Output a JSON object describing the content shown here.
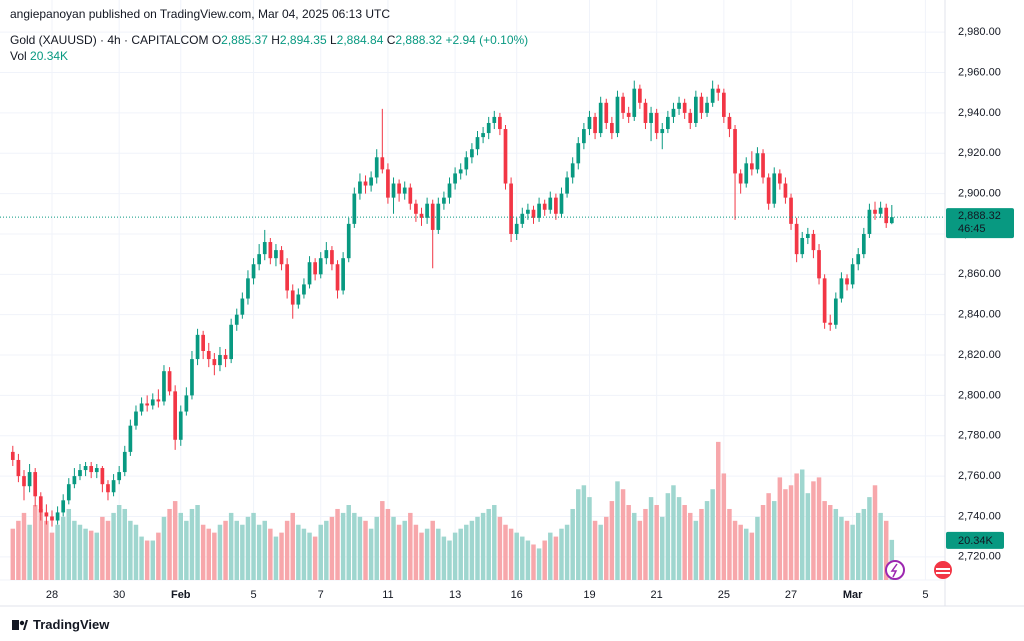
{
  "header": {
    "publisher": "angiepanoyan published on TradingView.com, Mar 04, 2025 06:13 UTC"
  },
  "chart_data": {
    "type": "candlestick",
    "title": "Gold (XAUUSD) · 4h · CAPITALCOM",
    "legend": {
      "o_label": "O",
      "o": "2,885.37",
      "h_label": "H",
      "h": "2,894.35",
      "l_label": "L",
      "l": "2,884.84",
      "c_label": "C",
      "c": "2,888.32",
      "change": "+2.94 (+0.10%)",
      "vol_label": "Vol",
      "vol": "20.34K"
    },
    "countdown": "46:45",
    "up_color": "#089981",
    "down_color": "#f23645",
    "volume_up_color": "#9fd6cf",
    "volume_down_color": "#f7a7ab",
    "grid": true,
    "ylim": [
      2710,
      2990
    ],
    "yticks": [
      {
        "value": 2720,
        "label": "2,720.00"
      },
      {
        "value": 2740,
        "label": "2,740.00"
      },
      {
        "value": 2760,
        "label": "2,760.00"
      },
      {
        "value": 2780,
        "label": "2,780.00"
      },
      {
        "value": 2800,
        "label": "2,800.00"
      },
      {
        "value": 2820,
        "label": "2,820.00"
      },
      {
        "value": 2840,
        "label": "2,840.00"
      },
      {
        "value": 2860,
        "label": "2,860.00"
      },
      {
        "value": 2880,
        "label": "2,880.00"
      },
      {
        "value": 2900,
        "label": "2,900.00"
      },
      {
        "value": 2920,
        "label": "2,920.00"
      },
      {
        "value": 2940,
        "label": "2,940.00"
      },
      {
        "value": 2960,
        "label": "2,960.00"
      },
      {
        "value": 2980,
        "label": "2,980.00"
      }
    ],
    "xlim": [
      0,
      167
    ],
    "xticks": [
      {
        "value": 7,
        "label": "28"
      },
      {
        "value": 19,
        "label": "30"
      },
      {
        "value": 30,
        "label": "Feb"
      },
      {
        "value": 43,
        "label": "5"
      },
      {
        "value": 55,
        "label": "7"
      },
      {
        "value": 67,
        "label": "11"
      },
      {
        "value": 79,
        "label": "13"
      },
      {
        "value": 90,
        "label": "16"
      },
      {
        "value": 103,
        "label": "19"
      },
      {
        "value": 115,
        "label": "21"
      },
      {
        "value": 127,
        "label": "25"
      },
      {
        "value": 139,
        "label": "27"
      },
      {
        "value": 150,
        "label": "Mar"
      },
      {
        "value": 163,
        "label": "5"
      }
    ],
    "vlim": [
      0,
      75000
    ],
    "candles": [
      [
        2772,
        2775,
        2765,
        2768
      ],
      [
        2768,
        2771,
        2757,
        2760
      ],
      [
        2760,
        2763,
        2748,
        2755
      ],
      [
        2755,
        2766,
        2752,
        2762
      ],
      [
        2762,
        2764,
        2745,
        2750
      ],
      [
        2750,
        2752,
        2738,
        2742
      ],
      [
        2742,
        2746,
        2736,
        2740
      ],
      [
        2740,
        2743,
        2735,
        2738
      ],
      [
        2738,
        2745,
        2736,
        2742
      ],
      [
        2742,
        2751,
        2740,
        2748
      ],
      [
        2748,
        2759,
        2746,
        2756
      ],
      [
        2756,
        2764,
        2754,
        2760
      ],
      [
        2760,
        2766,
        2758,
        2763
      ],
      [
        2763,
        2767,
        2760,
        2765
      ],
      [
        2765,
        2767,
        2759,
        2762
      ],
      [
        2762,
        2766,
        2759,
        2764
      ],
      [
        2764,
        2765,
        2752,
        2756
      ],
      [
        2756,
        2758,
        2748,
        2752
      ],
      [
        2752,
        2761,
        2750,
        2758
      ],
      [
        2758,
        2765,
        2756,
        2762
      ],
      [
        2762,
        2775,
        2760,
        2772
      ],
      [
        2772,
        2788,
        2770,
        2785
      ],
      [
        2785,
        2795,
        2783,
        2792
      ],
      [
        2792,
        2799,
        2790,
        2796
      ],
      [
        2796,
        2800,
        2792,
        2795
      ],
      [
        2795,
        2801,
        2793,
        2798
      ],
      [
        2798,
        2803,
        2794,
        2797
      ],
      [
        2797,
        2815,
        2795,
        2812
      ],
      [
        2812,
        2814,
        2800,
        2802
      ],
      [
        2802,
        2805,
        2773,
        2778
      ],
      [
        2778,
        2795,
        2775,
        2792
      ],
      [
        2792,
        2804,
        2790,
        2800
      ],
      [
        2800,
        2822,
        2798,
        2818
      ],
      [
        2818,
        2833,
        2815,
        2830
      ],
      [
        2830,
        2832,
        2818,
        2822
      ],
      [
        2822,
        2826,
        2814,
        2818
      ],
      [
        2818,
        2821,
        2810,
        2815
      ],
      [
        2815,
        2824,
        2812,
        2820
      ],
      [
        2820,
        2823,
        2814,
        2818
      ],
      [
        2818,
        2838,
        2816,
        2835
      ],
      [
        2835,
        2843,
        2832,
        2840
      ],
      [
        2840,
        2851,
        2838,
        2848
      ],
      [
        2848,
        2862,
        2845,
        2858
      ],
      [
        2858,
        2868,
        2855,
        2865
      ],
      [
        2865,
        2875,
        2862,
        2870
      ],
      [
        2870,
        2882,
        2867,
        2876
      ],
      [
        2876,
        2878,
        2865,
        2868
      ],
      [
        2868,
        2875,
        2864,
        2872
      ],
      [
        2872,
        2874,
        2862,
        2865
      ],
      [
        2865,
        2868,
        2848,
        2852
      ],
      [
        2852,
        2855,
        2838,
        2845
      ],
      [
        2845,
        2853,
        2843,
        2850
      ],
      [
        2850,
        2858,
        2848,
        2855
      ],
      [
        2855,
        2869,
        2853,
        2866
      ],
      [
        2866,
        2868,
        2857,
        2860
      ],
      [
        2860,
        2871,
        2858,
        2868
      ],
      [
        2868,
        2876,
        2865,
        2872
      ],
      [
        2872,
        2874,
        2862,
        2865
      ],
      [
        2865,
        2867,
        2848,
        2852
      ],
      [
        2852,
        2871,
        2850,
        2868
      ],
      [
        2868,
        2888,
        2866,
        2885
      ],
      [
        2885,
        2903,
        2883,
        2900
      ],
      [
        2900,
        2910,
        2897,
        2906
      ],
      [
        2906,
        2909,
        2900,
        2904
      ],
      [
        2904,
        2911,
        2901,
        2908
      ],
      [
        2908,
        2922,
        2905,
        2918
      ],
      [
        2918,
        2942,
        2910,
        2912
      ],
      [
        2912,
        2915,
        2895,
        2898
      ],
      [
        2898,
        2908,
        2890,
        2905
      ],
      [
        2905,
        2907,
        2896,
        2900
      ],
      [
        2900,
        2906,
        2897,
        2903
      ],
      [
        2903,
        2905,
        2892,
        2895
      ],
      [
        2895,
        2897,
        2886,
        2890
      ],
      [
        2890,
        2893,
        2884,
        2888
      ],
      [
        2888,
        2898,
        2885,
        2895
      ],
      [
        2895,
        2897,
        2863,
        2882
      ],
      [
        2882,
        2898,
        2880,
        2895
      ],
      [
        2895,
        2901,
        2892,
        2898
      ],
      [
        2898,
        2908,
        2895,
        2905
      ],
      [
        2905,
        2913,
        2902,
        2910
      ],
      [
        2910,
        2915,
        2907,
        2912
      ],
      [
        2912,
        2921,
        2909,
        2918
      ],
      [
        2918,
        2925,
        2915,
        2922
      ],
      [
        2922,
        2931,
        2919,
        2928
      ],
      [
        2928,
        2933,
        2925,
        2930
      ],
      [
        2930,
        2938,
        2927,
        2935
      ],
      [
        2935,
        2941,
        2932,
        2938
      ],
      [
        2938,
        2940,
        2929,
        2932
      ],
      [
        2932,
        2934,
        2902,
        2905
      ],
      [
        2905,
        2908,
        2876,
        2880
      ],
      [
        2880,
        2888,
        2877,
        2885
      ],
      [
        2885,
        2893,
        2883,
        2890
      ],
      [
        2890,
        2895,
        2887,
        2892
      ],
      [
        2892,
        2894,
        2885,
        2888
      ],
      [
        2888,
        2898,
        2886,
        2895
      ],
      [
        2895,
        2897,
        2889,
        2892
      ],
      [
        2892,
        2901,
        2890,
        2898
      ],
      [
        2898,
        2900,
        2887,
        2890
      ],
      [
        2890,
        2903,
        2888,
        2900
      ],
      [
        2900,
        2911,
        2898,
        2908
      ],
      [
        2908,
        2918,
        2905,
        2915
      ],
      [
        2915,
        2928,
        2912,
        2925
      ],
      [
        2925,
        2935,
        2922,
        2932
      ],
      [
        2932,
        2941,
        2929,
        2938
      ],
      [
        2938,
        2940,
        2927,
        2930
      ],
      [
        2930,
        2948,
        2928,
        2945
      ],
      [
        2945,
        2947,
        2932,
        2935
      ],
      [
        2935,
        2938,
        2927,
        2930
      ],
      [
        2930,
        2951,
        2928,
        2948
      ],
      [
        2948,
        2950,
        2937,
        2940
      ],
      [
        2940,
        2943,
        2935,
        2938
      ],
      [
        2938,
        2956,
        2936,
        2952
      ],
      [
        2952,
        2954,
        2942,
        2945
      ],
      [
        2945,
        2947,
        2932,
        2935
      ],
      [
        2935,
        2943,
        2926,
        2940
      ],
      [
        2940,
        2942,
        2927,
        2930
      ],
      [
        2930,
        2935,
        2922,
        2932
      ],
      [
        2932,
        2941,
        2930,
        2938
      ],
      [
        2938,
        2945,
        2935,
        2942
      ],
      [
        2942,
        2948,
        2939,
        2945
      ],
      [
        2945,
        2947,
        2937,
        2940
      ],
      [
        2940,
        2942,
        2932,
        2935
      ],
      [
        2935,
        2951,
        2933,
        2948
      ],
      [
        2948,
        2950,
        2937,
        2940
      ],
      [
        2940,
        2948,
        2938,
        2945
      ],
      [
        2945,
        2956,
        2943,
        2952
      ],
      [
        2952,
        2954,
        2946,
        2950
      ],
      [
        2950,
        2952,
        2935,
        2938
      ],
      [
        2938,
        2940,
        2928,
        2932
      ],
      [
        2932,
        2934,
        2887,
        2910
      ],
      [
        2910,
        2912,
        2900,
        2905
      ],
      [
        2905,
        2918,
        2903,
        2915
      ],
      [
        2915,
        2921,
        2909,
        2912
      ],
      [
        2912,
        2923,
        2910,
        2920
      ],
      [
        2920,
        2922,
        2905,
        2908
      ],
      [
        2908,
        2910,
        2892,
        2895
      ],
      [
        2895,
        2913,
        2893,
        2910
      ],
      [
        2910,
        2912,
        2902,
        2905
      ],
      [
        2905,
        2908,
        2895,
        2898
      ],
      [
        2898,
        2900,
        2882,
        2885
      ],
      [
        2885,
        2888,
        2866,
        2870
      ],
      [
        2870,
        2881,
        2868,
        2878
      ],
      [
        2878,
        2883,
        2875,
        2880
      ],
      [
        2880,
        2882,
        2868,
        2872
      ],
      [
        2872,
        2875,
        2855,
        2858
      ],
      [
        2858,
        2860,
        2833,
        2836
      ],
      [
        2836,
        2840,
        2832,
        2835
      ],
      [
        2835,
        2851,
        2833,
        2848
      ],
      [
        2848,
        2861,
        2846,
        2858
      ],
      [
        2858,
        2860,
        2852,
        2855
      ],
      [
        2855,
        2868,
        2853,
        2865
      ],
      [
        2865,
        2873,
        2862,
        2870
      ],
      [
        2870,
        2883,
        2868,
        2880
      ],
      [
        2880,
        2895,
        2878,
        2892
      ],
      [
        2892,
        2896,
        2887,
        2890
      ],
      [
        2890,
        2896,
        2888,
        2893
      ],
      [
        2893,
        2895,
        2883,
        2885.37
      ],
      [
        2885.37,
        2894.35,
        2884.84,
        2888.32
      ]
    ],
    "volume": [
      26000,
      30000,
      34000,
      28000,
      38000,
      36000,
      30000,
      24000,
      28000,
      32000,
      36000,
      30000,
      28000,
      26000,
      25000,
      24000,
      32000,
      30000,
      34000,
      38000,
      36000,
      30000,
      28000,
      22000,
      20000,
      20000,
      24000,
      32000,
      36000,
      40000,
      34000,
      30000,
      36000,
      38000,
      28000,
      26000,
      24000,
      28000,
      30000,
      34000,
      30000,
      28000,
      32000,
      34000,
      28000,
      30000,
      26000,
      22000,
      24000,
      30000,
      34000,
      28000,
      26000,
      24000,
      22000,
      28000,
      30000,
      32000,
      36000,
      34000,
      38000,
      34000,
      32000,
      30000,
      26000,
      32000,
      40000,
      36000,
      32000,
      28000,
      30000,
      34000,
      28000,
      24000,
      26000,
      30000,
      26000,
      22000,
      20000,
      24000,
      26000,
      28000,
      30000,
      32000,
      34000,
      36000,
      38000,
      32000,
      28000,
      26000,
      24000,
      22000,
      20000,
      18000,
      16000,
      20000,
      24000,
      22000,
      26000,
      28000,
      36000,
      46000,
      48000,
      42000,
      30000,
      28000,
      32000,
      40000,
      50000,
      46000,
      38000,
      34000,
      30000,
      36000,
      42000,
      38000,
      32000,
      44000,
      48000,
      42000,
      38000,
      34000,
      30000,
      36000,
      40000,
      46000,
      70000,
      54000,
      36000,
      30000,
      28000,
      26000,
      24000,
      32000,
      38000,
      44000,
      40000,
      52000,
      46000,
      48000,
      54000,
      56000,
      44000,
      50000,
      52000,
      40000,
      38000,
      36000,
      32000,
      30000,
      28000,
      34000,
      36000,
      42000,
      48000,
      34000,
      30000,
      20340
    ]
  },
  "footer": {
    "brand": "TradingView"
  }
}
